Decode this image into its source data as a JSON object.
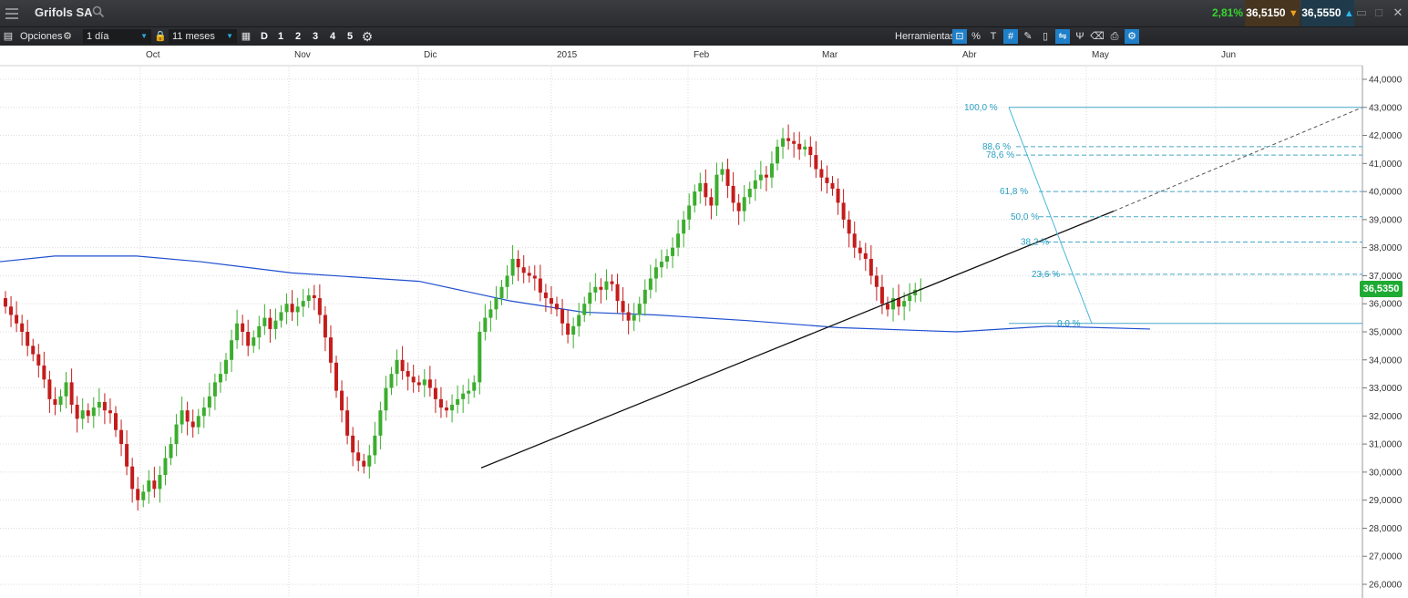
{
  "header": {
    "instrument": "Grifols SA",
    "change_pct": "2,81%",
    "sell_price": "36,5150",
    "buy_price": "36,5550"
  },
  "toolbar": {
    "options_label": "Opciones",
    "interval": "1 día",
    "range": "11 meses",
    "period_buttons": [
      "D",
      "1",
      "2",
      "3",
      "4",
      "5"
    ],
    "tools_label": "Herramientas"
  },
  "chart_data": {
    "type": "candlestick",
    "title": "",
    "x_months": [
      "Oct",
      "Nov",
      "Dic",
      "2015",
      "Feb",
      "Mar",
      "Abr",
      "May",
      "Jun"
    ],
    "y_ticks": [
      "44,0000",
      "43,0000",
      "42,0000",
      "41,0000",
      "40,0000",
      "39,0000",
      "38,0000",
      "37,0000",
      "36,0000",
      "35,0000",
      "34,0000",
      "33,0000",
      "32,0000",
      "31,0000",
      "30,0000",
      "29,0000",
      "28,0000",
      "27,0000",
      "26,0000"
    ],
    "ylim": [
      25.6,
      44.5
    ],
    "current_price_label": "36,5350",
    "current_price": 36.535,
    "fibonacci_levels": [
      {
        "label": "100,0 %",
        "value": 43.0
      },
      {
        "label": "88,6 %",
        "value": 41.6
      },
      {
        "label": "78,6 %",
        "value": 41.3
      },
      {
        "label": "61,8 %",
        "value": 40.0
      },
      {
        "label": "50,0 %",
        "value": 39.1
      },
      {
        "label": "38,2 %",
        "value": 38.2
      },
      {
        "label": "23,6 %",
        "value": 37.05
      },
      {
        "label": "0,0 %",
        "value": 35.3
      }
    ],
    "close_prices": [
      35.9,
      35.6,
      35.3,
      35.0,
      34.5,
      34.2,
      33.8,
      33.3,
      32.6,
      32.4,
      32.7,
      33.2,
      32.4,
      31.9,
      32.2,
      32.0,
      32.3,
      32.5,
      32.2,
      32.1,
      31.5,
      31.0,
      30.2,
      29.4,
      29.0,
      29.3,
      29.7,
      29.4,
      29.9,
      30.5,
      31.0,
      31.7,
      32.2,
      31.8,
      31.6,
      32.0,
      32.3,
      32.7,
      33.2,
      33.5,
      34.0,
      34.7,
      35.3,
      35.0,
      34.5,
      34.8,
      35.2,
      35.5,
      35.1,
      35.4,
      35.7,
      36.0,
      35.7,
      35.9,
      36.1,
      36.3,
      36.2,
      35.6,
      34.8,
      33.9,
      32.9,
      32.2,
      31.3,
      30.7,
      30.4,
      30.2,
      30.6,
      31.3,
      32.2,
      33.0,
      33.5,
      34.0,
      33.6,
      33.4,
      33.2,
      33.1,
      33.3,
      33.0,
      32.6,
      32.3,
      32.2,
      32.4,
      32.6,
      32.8,
      32.9,
      33.2,
      35.0,
      35.5,
      35.8,
      36.2,
      36.6,
      37.0,
      37.6,
      37.3,
      37.1,
      37.0,
      36.9,
      36.4,
      36.2,
      36.0,
      35.8,
      35.3,
      34.9,
      35.2,
      35.6,
      36.0,
      36.4,
      36.6,
      36.5,
      36.8,
      36.7,
      36.1,
      35.7,
      35.4,
      35.6,
      36.0,
      36.5,
      36.9,
      37.3,
      37.5,
      37.7,
      38.0,
      38.5,
      39.0,
      39.5,
      40.0,
      40.3,
      39.8,
      39.5,
      40.6,
      40.8,
      40.2,
      39.6,
      39.3,
      39.8,
      40.1,
      40.4,
      40.6,
      40.5,
      41.0,
      41.6,
      41.9,
      41.8,
      41.7,
      41.5,
      41.6,
      41.3,
      40.8,
      40.5,
      40.3,
      40.1,
      39.6,
      39.0,
      38.5,
      38.0,
      37.8,
      37.6,
      37.0,
      36.6,
      36.0,
      35.8,
      36.2,
      35.9,
      36.1,
      36.3,
      36.5,
      36.535
    ],
    "ma_label": "moving average",
    "trendline": [
      [
        30.2,
        "Dic"
      ],
      [
        39.3,
        "Abr"
      ]
    ]
  }
}
